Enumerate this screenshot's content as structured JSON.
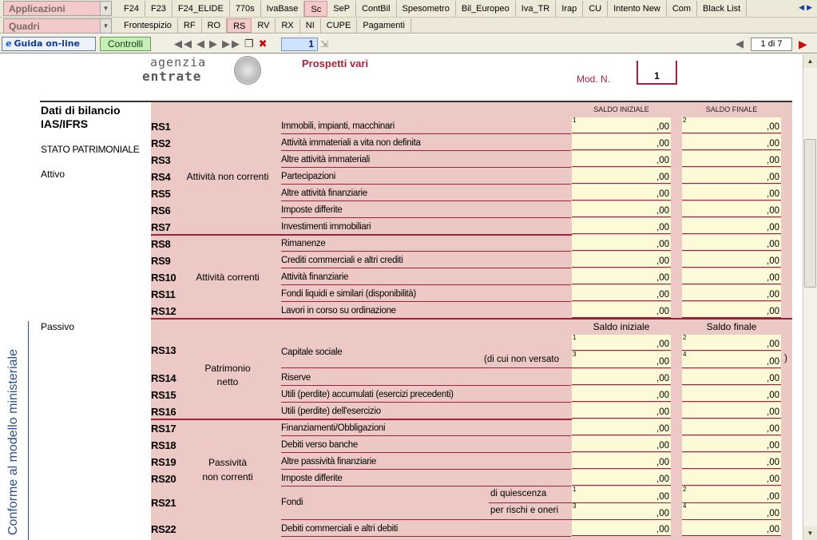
{
  "toolbar1": {
    "combo": "Applicazioni",
    "tabs": [
      "F24",
      "F23",
      "F24_ELIDE",
      "770s",
      "IvaBase",
      "Sc",
      "SeP",
      "ContBil",
      "Spesometro",
      "Bil_Europeo",
      "Iva_TR",
      "Irap",
      "CU",
      "Intento New",
      "Com",
      "Black List"
    ],
    "active_tab": "Sc"
  },
  "toolbar2": {
    "combo": "Quadri",
    "tabs": [
      "Frontespizio",
      "RF",
      "RO",
      "RS",
      "RV",
      "RX",
      "NI",
      "CUPE",
      "Pagamenti"
    ],
    "active_tab": "RS"
  },
  "toolbar3": {
    "help_label": "Guida on-line",
    "check_label": "Controlli",
    "page_value": "1",
    "page_of": "1 di 7"
  },
  "colors": {
    "pink": "#ecc9c4",
    "field": "#fdfbd7",
    "accent": "#a0203a",
    "active_tab": "#f3c9c9"
  },
  "doc": {
    "logo_line1": "agenzia",
    "logo_line2": "entrate",
    "subtitle": "Prospetti vari",
    "mod_label": "Mod. N.",
    "mod_value": "1",
    "title": "Dati di bilancio IAS/IFRS",
    "section1": "STATO PATRIMONIALE",
    "attivo": "Attivo",
    "passivo": "Passivo",
    "vertical_note": "Conforme al modello ministeriale",
    "head_a_initial": "SALDO INIZIALE",
    "head_a_final": "SALDO FINALE",
    "head_b_initial": "Saldo iniziale",
    "head_b_final": "Saldo finale",
    "cents": ",00",
    "groups": {
      "attivita_non_correnti": "Attività non correnti",
      "attivita_correnti": "Attività correnti",
      "patrimonio_netto_1": "Patrimonio",
      "patrimonio_netto_2": "netto",
      "passivita_nc_1": "Passività",
      "passivita_nc_2": "non correnti"
    },
    "rows_a": [
      {
        "code": "RS1",
        "desc": "Immobili, impianti, macchinari"
      },
      {
        "code": "RS2",
        "desc": "Attività immateriali a vita non definita"
      },
      {
        "code": "RS3",
        "desc": "Altre attività immateriali"
      },
      {
        "code": "RS4",
        "desc": "Partecipazioni"
      },
      {
        "code": "RS5",
        "desc": "Altre attività finanziarie"
      },
      {
        "code": "RS6",
        "desc": "Imposte differite"
      },
      {
        "code": "RS7",
        "desc": "Investimenti immobiliari"
      },
      {
        "code": "RS8",
        "desc": "Rimanenze"
      },
      {
        "code": "RS9",
        "desc": "Crediti commerciali e altri crediti"
      },
      {
        "code": "RS10",
        "desc": "Attività finanziarie"
      },
      {
        "code": "RS11",
        "desc": "Fondi liquidi e similari (disponibilità)"
      },
      {
        "code": "RS12",
        "desc": "Lavori in corso su ordinazione"
      }
    ],
    "rs13": {
      "code": "RS13",
      "desc": "Capitale sociale",
      "sub": "(di cui non versato",
      "close": ")"
    },
    "rows_b": [
      {
        "code": "RS14",
        "desc": "Riserve"
      },
      {
        "code": "RS15",
        "desc": "Utili (perdite) accumulati (esercizi precedenti)"
      },
      {
        "code": "RS16",
        "desc": "Utili (perdite) dell'esercizio"
      },
      {
        "code": "RS17",
        "desc": "Finanziamenti/Obbligazioni"
      },
      {
        "code": "RS18",
        "desc": "Debiti verso banche"
      },
      {
        "code": "RS19",
        "desc": "Altre passività finanziarie"
      },
      {
        "code": "RS20",
        "desc": "Imposte differite"
      }
    ],
    "rs21": {
      "code": "RS21",
      "desc": "Fondi",
      "sub1": "di quiescenza",
      "sub2": "per rischi e oneri"
    },
    "rs22": {
      "code": "RS22",
      "desc": "Debiti commerciali e altri debiti"
    },
    "field_nums": {
      "one": "1",
      "two": "2",
      "three": "3",
      "four": "4"
    }
  }
}
